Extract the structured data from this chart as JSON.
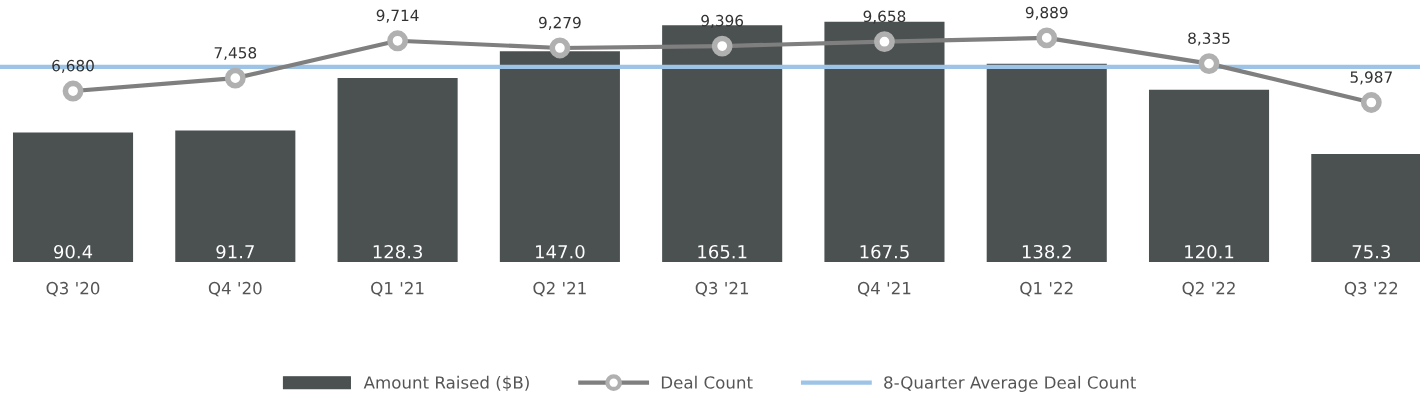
{
  "chart_data": {
    "type": "bar",
    "categories": [
      "Q3 '20",
      "Q4 '20",
      "Q1 '21",
      "Q2 '21",
      "Q3 '21",
      "Q4 '21",
      "Q1 '22",
      "Q2 '22",
      "Q3 '22"
    ],
    "series": [
      {
        "name": "Amount Raised ($B)",
        "color": "#4b5050",
        "values": [
          90.4,
          91.7,
          128.3,
          147.0,
          165.1,
          167.5,
          138.2,
          120.1,
          75.3
        ],
        "value_labels": [
          "90.4",
          "91.7",
          "128.3",
          "147.0",
          "165.1",
          "167.5",
          "138.2",
          "120.1",
          "75.3"
        ]
      },
      {
        "name": "Deal Count",
        "type": "line",
        "axis": "y2",
        "color": "#7f7f7f",
        "marker": "circle",
        "values": [
          6680,
          7458,
          9714,
          9279,
          9396,
          9658,
          9889,
          8335,
          5987
        ],
        "value_labels": [
          "6,680",
          "7,458",
          "9,714",
          "9,279",
          "9,396",
          "9,658",
          "9,889",
          "8,335",
          "5,987"
        ]
      }
    ],
    "tick_labels": "x",
    "ref_lines": [
      {
        "axis": "y2",
        "value": 8140,
        "label": "8-Quarter Average Deal Count",
        "color": "#9dc3e6"
      }
    ],
    "legend": "bottom"
  }
}
